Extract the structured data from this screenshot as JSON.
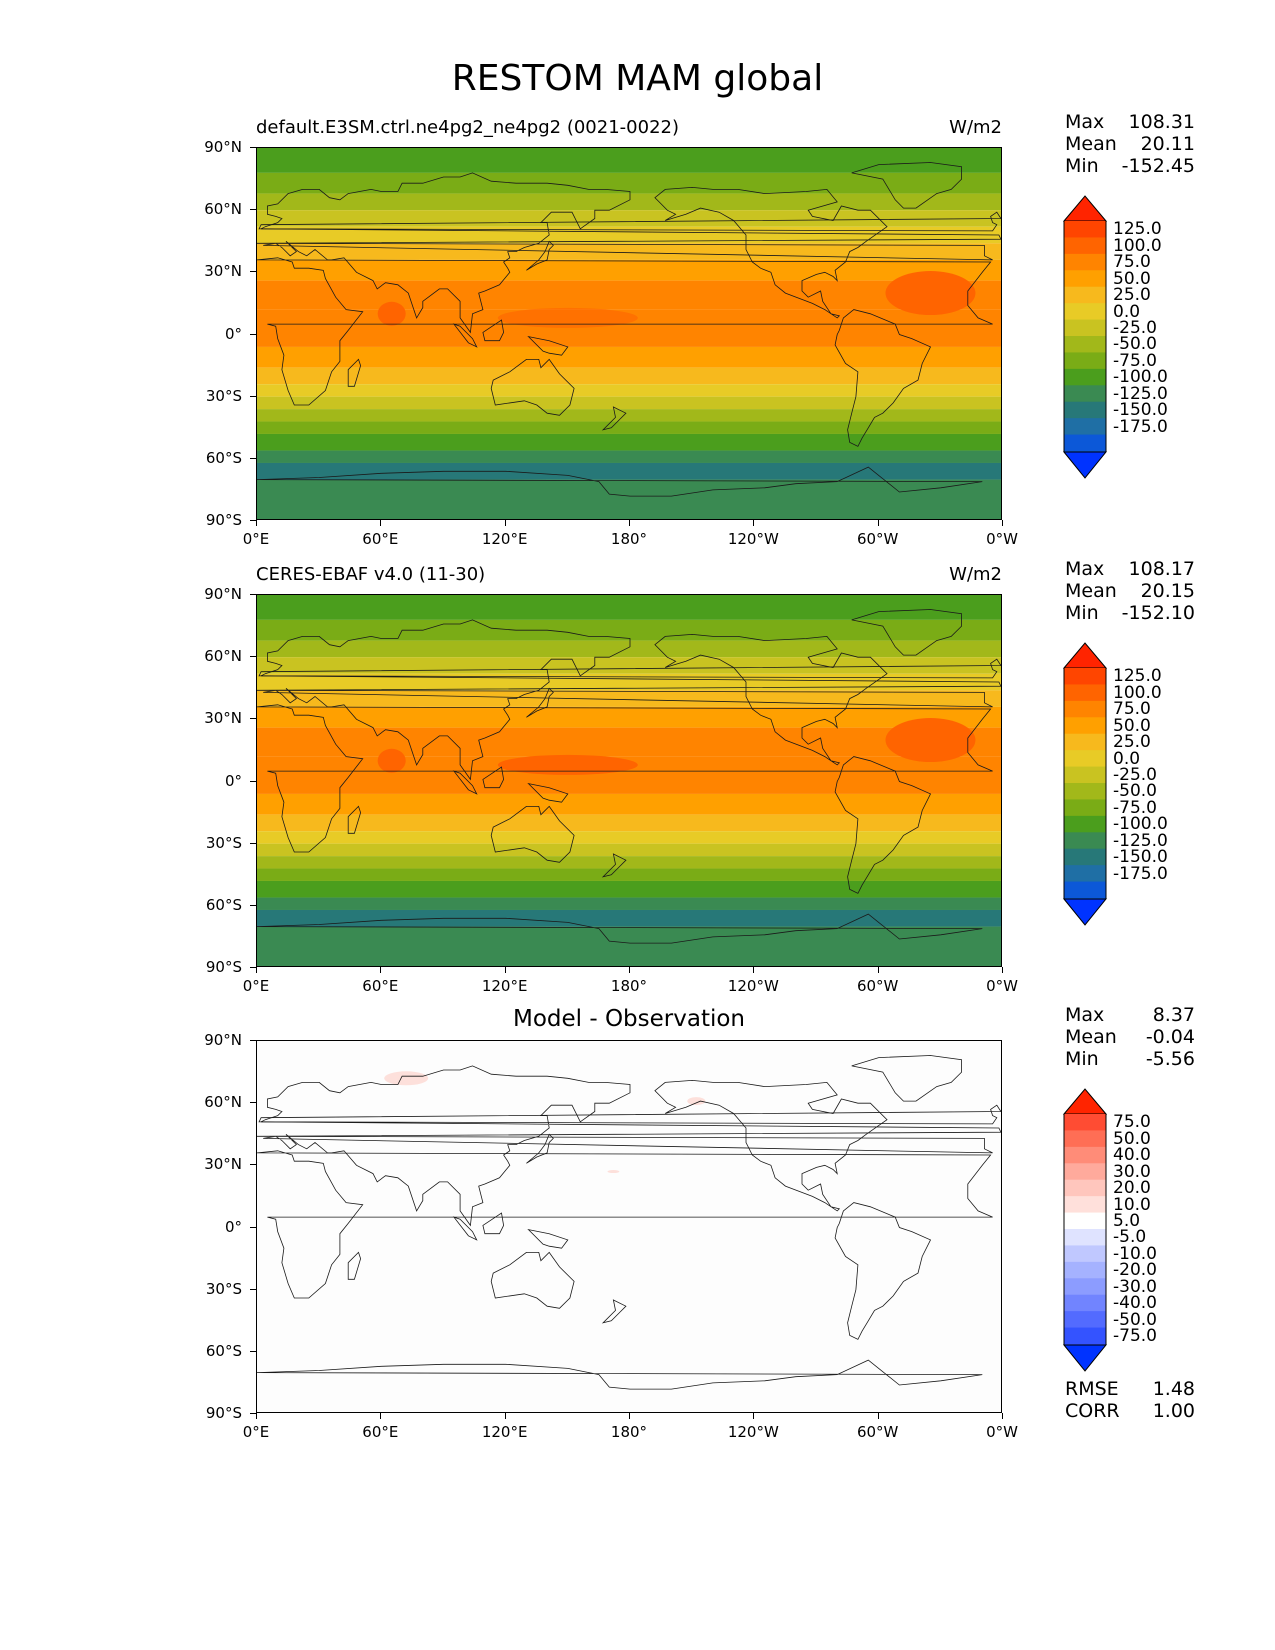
{
  "title": "RESTOM MAM global",
  "lat_labels": [
    "90°N",
    "60°N",
    "30°N",
    "0°",
    "30°S",
    "60°S",
    "90°S"
  ],
  "lon_labels": [
    "0°E",
    "60°E",
    "120°E",
    "180°",
    "120°W",
    "60°W",
    "0°W"
  ],
  "panels": [
    {
      "name": "model",
      "title_left": "default.E3SM.ctrl.ne4pg2_ne4pg2 (0021-0022)",
      "title_center": "",
      "units": "W/m2",
      "stats": {
        "max_label": "Max",
        "max": "108.31",
        "mean_label": "Mean",
        "mean": "20.11",
        "min_label": "Min",
        "min": "-152.45"
      },
      "colorbar_levels": [
        "125.0",
        "100.0",
        "75.0",
        "50.0",
        "25.0",
        "0.0",
        "-25.0",
        "-50.0",
        "-75.0",
        "-100.0",
        "-125.0",
        "-150.0",
        "-175.0"
      ]
    },
    {
      "name": "observation",
      "title_left": "CERES-EBAF v4.0 (11-30)",
      "title_center": "",
      "units": "W/m2",
      "stats": {
        "max_label": "Max",
        "max": "108.17",
        "mean_label": "Mean",
        "mean": "20.15",
        "min_label": "Min",
        "min": "-152.10"
      },
      "colorbar_levels": [
        "125.0",
        "100.0",
        "75.0",
        "50.0",
        "25.0",
        "0.0",
        "-25.0",
        "-50.0",
        "-75.0",
        "-100.0",
        "-125.0",
        "-150.0",
        "-175.0"
      ]
    },
    {
      "name": "difference",
      "title_left": "",
      "title_center": "Model - Observation",
      "units": "",
      "stats": {
        "max_label": "Max",
        "max": "8.37",
        "mean_label": "Mean",
        "mean": "-0.04",
        "min_label": "Min",
        "min": "-5.56"
      },
      "colorbar_levels": [
        "75.0",
        "50.0",
        "40.0",
        "30.0",
        "20.0",
        "10.0",
        "5.0",
        "-5.0",
        "-10.0",
        "-20.0",
        "-30.0",
        "-40.0",
        "-50.0",
        "-75.0"
      ],
      "metrics": {
        "rmse_label": "RMSE",
        "rmse": "1.48",
        "corr_label": "CORR",
        "corr": "1.00"
      }
    }
  ],
  "colors": {
    "main_cbar": [
      "#ff2400",
      "#ff4500",
      "#ff6400",
      "#ff8400",
      "#ffa000",
      "#f7b91d",
      "#e8cb26",
      "#c9c321",
      "#a2b81a",
      "#7aac16",
      "#4b9e1d",
      "#3a8a52",
      "#277878",
      "#1f6fa5",
      "#0c58d8",
      "#0033ff"
    ],
    "diff_cbar": [
      "#ff2400",
      "#ff4c33",
      "#ff6e55",
      "#ff8c78",
      "#ffaa9c",
      "#ffc6bd",
      "#ffe0db",
      "#ffffff",
      "#dfe3ff",
      "#c0c8ff",
      "#a5b2ff",
      "#8c9cff",
      "#7184ff",
      "#536bff",
      "#3453ff",
      "#0033ff"
    ]
  }
}
